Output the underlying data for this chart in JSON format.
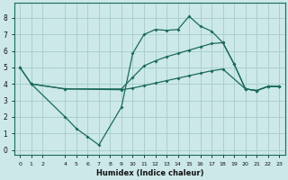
{
  "xlabel": "Humidex (Indice chaleur)",
  "bg_color": "#cce8e8",
  "grid_color": "#aacfcf",
  "line_color": "#1a6b5a",
  "xlim": [
    -0.5,
    23.5
  ],
  "ylim": [
    -0.3,
    8.9
  ],
  "xticks": [
    0,
    1,
    2,
    4,
    5,
    6,
    7,
    8,
    9,
    10,
    11,
    12,
    13,
    14,
    15,
    16,
    17,
    18,
    19,
    20,
    21,
    22,
    23
  ],
  "yticks": [
    0,
    1,
    2,
    3,
    4,
    5,
    6,
    7,
    8
  ],
  "line1_x": [
    0,
    1,
    4,
    5,
    6,
    7,
    9,
    10,
    11,
    12,
    13,
    14,
    15,
    16,
    17,
    18,
    19,
    20,
    21,
    22,
    23
  ],
  "line1_y": [
    5.0,
    4.0,
    2.0,
    1.3,
    0.8,
    0.3,
    2.6,
    5.85,
    7.0,
    7.3,
    7.25,
    7.3,
    8.1,
    7.5,
    7.2,
    6.5,
    5.2,
    3.7,
    3.6,
    3.85,
    3.85
  ],
  "line2_x": [
    0,
    1,
    4,
    9,
    10,
    11,
    12,
    13,
    14,
    15,
    16,
    17,
    18,
    19,
    20,
    21,
    22,
    23
  ],
  "line2_y": [
    5.0,
    4.0,
    3.7,
    3.7,
    4.4,
    5.1,
    5.4,
    5.65,
    5.85,
    6.05,
    6.25,
    6.45,
    6.5,
    5.2,
    3.7,
    3.6,
    3.85,
    3.85
  ],
  "line3_x": [
    1,
    4,
    9,
    10,
    11,
    12,
    13,
    14,
    15,
    16,
    17,
    18,
    20,
    21,
    22,
    23
  ],
  "line3_y": [
    4.0,
    3.7,
    3.65,
    3.75,
    3.9,
    4.05,
    4.2,
    4.35,
    4.5,
    4.65,
    4.8,
    4.9,
    3.7,
    3.6,
    3.85,
    3.85
  ]
}
